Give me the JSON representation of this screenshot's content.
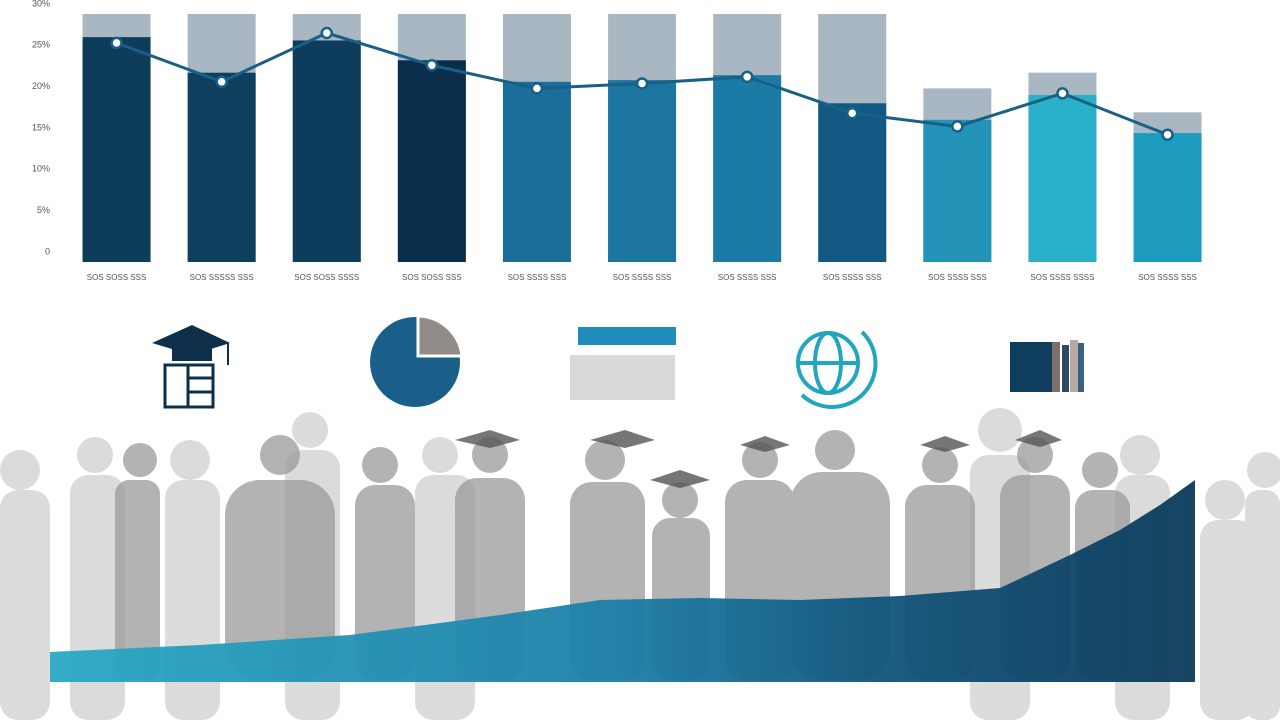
{
  "chart_data": {
    "type": "bar",
    "categories": [
      "SOS SOSS SSS",
      "SOS SSSSS SSS",
      "SOS SOSS SSSS",
      "SOS SOSS SSS",
      "SOS SSSS SSS",
      "SOS SSSS SSS",
      "SOS SSSS SSS",
      "SOS SSSS SSS",
      "SOS SSSS SSS",
      "SOS SSSS SSSS",
      "SOS SSSS SSS"
    ],
    "values": [
      27.2,
      22.9,
      26.8,
      24.4,
      21.8,
      22.0,
      22.6,
      19.2,
      17.2,
      20.2,
      15.6
    ],
    "background_values": [
      30,
      30,
      30,
      30,
      30,
      30,
      30,
      30,
      21.0,
      22.9,
      18.1
    ],
    "line_values": [
      26.5,
      21.8,
      27.7,
      23.8,
      21.0,
      21.6,
      22.4,
      18.0,
      16.4,
      20.4,
      15.4
    ],
    "colors": [
      "#0e3d5c",
      "#0f3f5f",
      "#0d3c5c",
      "#0a2d4c",
      "#1a6e99",
      "#1c76a0",
      "#1b7aa6",
      "#135882",
      "#2393b8",
      "#2ab0c8",
      "#1e9cc0"
    ],
    "background_color": "#a9b7c2",
    "line_color": "#1a5f85",
    "ylim": [
      0,
      30
    ],
    "yticks": [
      0,
      {
        "value": 5,
        "label": "5%"
      },
      {
        "value": 10,
        "label": "10%"
      },
      {
        "value": 15,
        "label": "15%"
      },
      {
        "value": 20,
        "label": "20%"
      },
      {
        "value": 25,
        "label": "25%"
      },
      {
        "value": 30,
        "label": "30%"
      }
    ]
  }
}
